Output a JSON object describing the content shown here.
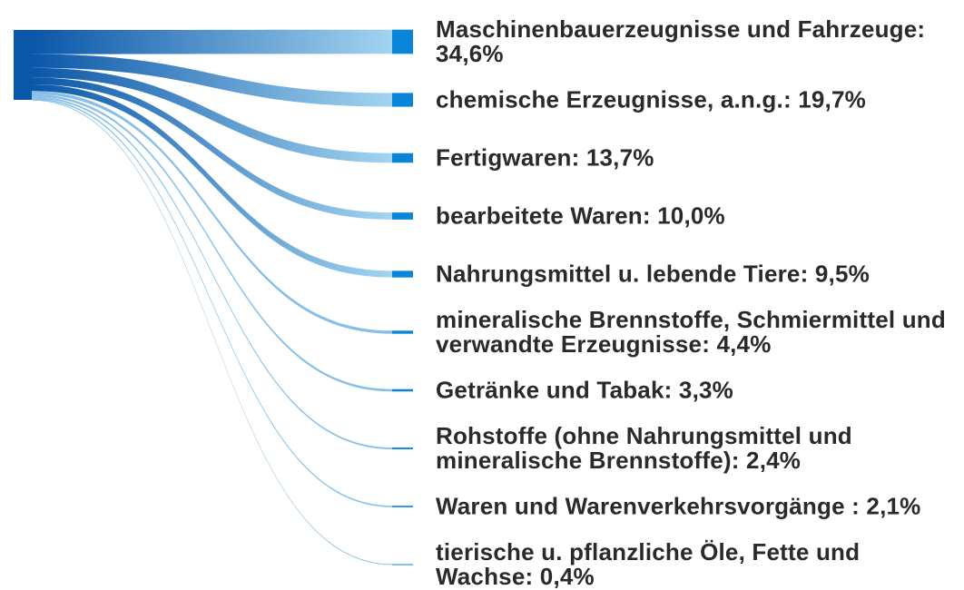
{
  "chart_data": {
    "type": "sankey",
    "categories": [
      "Maschinenbauerzeugnisse und Fahrzeuge",
      "chemische Erzeugnisse, a.n.g.",
      "Fertigwaren",
      "bearbeitete Waren",
      "Nahrungsmittel u. lebende Tiere",
      "mineralische Brennstoffe, Schmiermittel und verwandte Erzeugnisse",
      "Getränke und Tabak",
      "Rohstoffe (ohne Nahrungsmittel und mineralische Brennstoffe)",
      "Waren und Warenverkehrsvorgänge",
      "tierische u. pflanzliche Öle, Fette und Wachse"
    ],
    "values": [
      34.6,
      19.7,
      13.7,
      10.0,
      9.5,
      4.4,
      3.3,
      2.4,
      2.1,
      0.4
    ],
    "value_labels": [
      "Maschinenbauerzeugnisse und Fahrzeuge: 34,6%",
      "chemische Erzeugnisse, a.n.g.: 19,7%",
      "Fertigwaren: 13,7%",
      "bearbeitete Waren: 10,0%",
      "Nahrungsmittel u. lebende Tiere: 9,5%",
      "mineralische Brennstoffe, Schmiermittel und verwandte Erzeugnisse: 4,4%",
      "Getränke und Tabak: 3,3%",
      "Rohstoffe (ohne Nahrungsmittel und mineralische Brennstoffe): 2,4%",
      "Waren und Warenverkehrsvorgänge : 2,1%",
      "tierische u. pflanzliche Öle, Fette und Wachse: 0,4%"
    ],
    "color": "#0a84d6"
  }
}
